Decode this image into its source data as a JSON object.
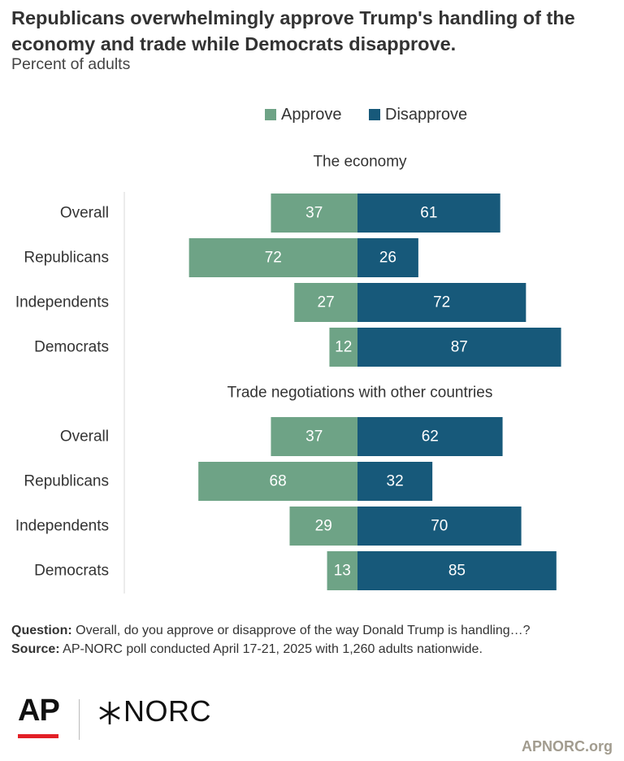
{
  "header": {
    "title": "Republicans overwhelmingly approve Trump's handling of the economy and trade while Democrats disapprove.",
    "subtitle": "Percent of adults"
  },
  "chart_data": {
    "type": "bar",
    "orientation": "diverging-horizontal",
    "legend": [
      {
        "name": "Approve",
        "color": "#6ea386"
      },
      {
        "name": "Disapprove",
        "color": "#17597a"
      }
    ],
    "legend_position": "top-right",
    "panels": [
      {
        "title": "The economy",
        "categories": [
          "Overall",
          "Republicans",
          "Independents",
          "Democrats"
        ],
        "series": [
          {
            "name": "Approve",
            "values": [
              37,
              72,
              27,
              12
            ]
          },
          {
            "name": "Disapprove",
            "values": [
              61,
              26,
              72,
              87
            ]
          }
        ]
      },
      {
        "title": "Trade negotiations with other countries",
        "categories": [
          "Overall",
          "Republicans",
          "Independents",
          "Democrats"
        ],
        "series": [
          {
            "name": "Approve",
            "values": [
              37,
              68,
              29,
              13
            ]
          },
          {
            "name": "Disapprove",
            "values": [
              62,
              32,
              70,
              85
            ]
          }
        ]
      }
    ]
  },
  "footer": {
    "question_label": "Question:",
    "question_text": "Overall, do you approve or disapprove of the way Donald Trump is handling…?",
    "source_label": "Source:",
    "source_text": "AP-NORC poll conducted April 17-21, 2025 with 1,260 adults nationwide."
  },
  "branding": {
    "ap_logo": "AP",
    "norc_logo": "NORC",
    "site": "APNORC.org",
    "ap_red": "#e21f26"
  }
}
